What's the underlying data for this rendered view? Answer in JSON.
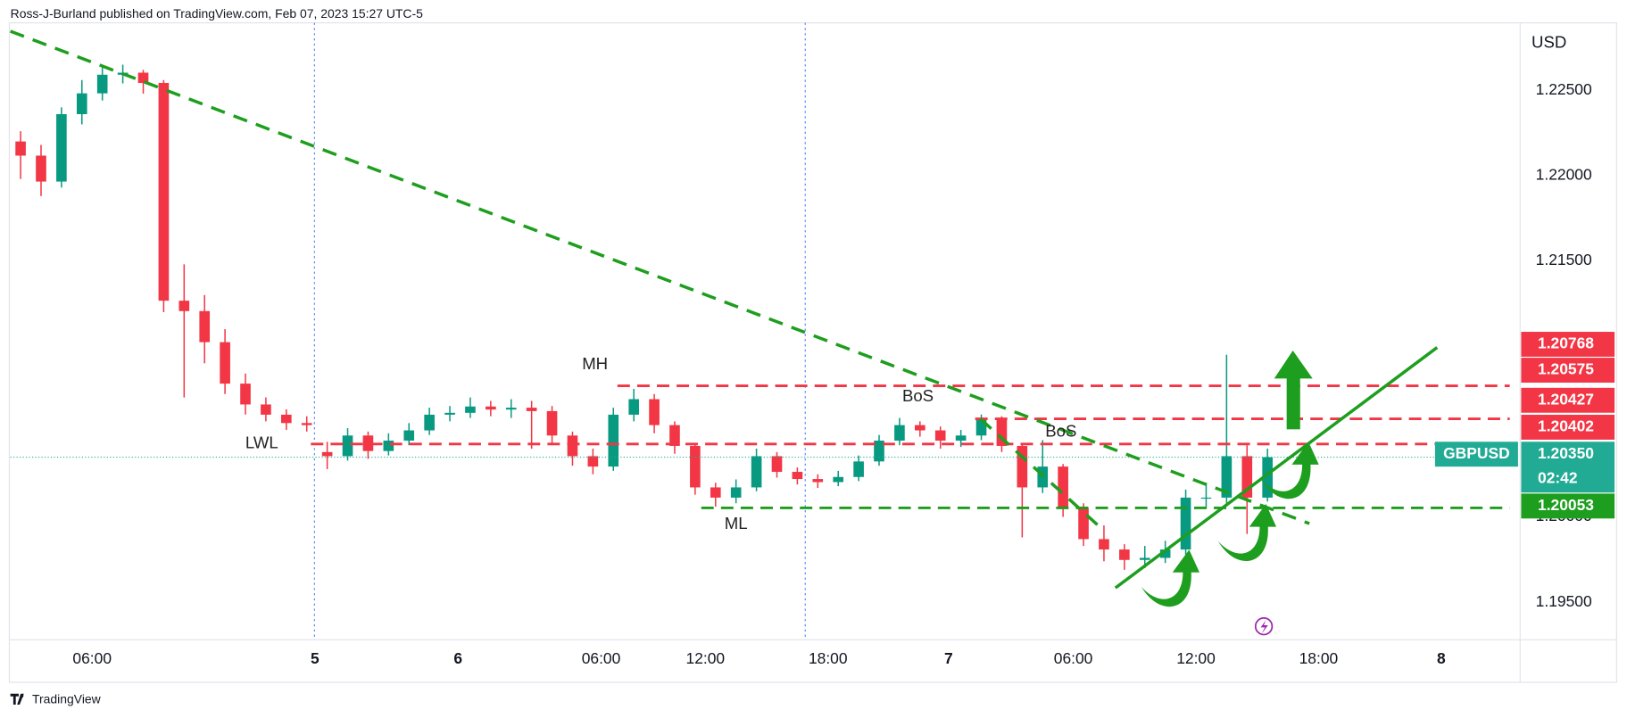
{
  "header": "Ross-J-Burland published on TradingView.com, Feb 07, 2023 15:27 UTC-5",
  "footer": "TradingView",
  "chart_data": {
    "type": "candlestick",
    "symbol": "GBPUSD",
    "y_axis_label": "USD",
    "up_color": "#089981",
    "down_color": "#f23645",
    "open": [
      1.222,
      1.22117,
      1.21965,
      1.2236,
      1.22482,
      1.22591,
      1.22603,
      1.22543,
      1.21267,
      1.21206,
      1.21024,
      1.20781,
      1.20659,
      1.20599,
      1.2055,
      1.2038,
      1.20356,
      1.20477,
      1.20386,
      1.20447,
      1.20507,
      1.20599,
      1.2061,
      1.20647,
      1.20629,
      1.2064,
      1.2062,
      1.20477,
      1.20356,
      1.20295,
      1.20599,
      1.2069,
      1.20538,
      1.20416,
      1.20173,
      1.20113,
      1.20173,
      1.20356,
      1.20264,
      1.20222,
      1.20204,
      1.20234,
      1.20325,
      1.20447,
      1.20538,
      1.20507,
      1.20447,
      1.20477,
      1.20568,
      1.20416,
      1.20173,
      1.20295,
      1.20052,
      1.1987,
      1.19809,
      1.19748,
      1.1976,
      1.19809,
      1.20113,
      1.20113,
      1.20356,
      1.20113
    ],
    "high": [
      1.2226,
      1.2218,
      1.224,
      1.2256,
      1.2264,
      1.2265,
      1.2262,
      1.2256,
      1.2148,
      1.213,
      1.211,
      1.2084,
      1.207,
      1.2063,
      1.2059,
      1.2044,
      1.2052,
      1.205,
      1.2049,
      1.2055,
      1.2064,
      1.2065,
      1.207,
      1.2068,
      1.2069,
      1.2068,
      1.2065,
      1.205,
      1.204,
      1.2064,
      1.2075,
      1.2072,
      1.2056,
      1.2043,
      1.202,
      1.2022,
      1.204,
      1.2038,
      1.2029,
      1.2025,
      1.2027,
      1.2036,
      1.2048,
      1.2058,
      1.2056,
      1.2053,
      1.2051,
      1.206,
      1.2059,
      1.2043,
      1.2045,
      1.2031,
      1.2008,
      1.1995,
      1.1984,
      1.1983,
      1.1986,
      1.2016,
      1.202,
      1.2095,
      1.2042,
      1.204
    ],
    "low": [
      1.2198,
      1.2188,
      1.2193,
      1.223,
      1.2244,
      1.2254,
      1.2248,
      1.212,
      1.207,
      1.209,
      1.2072,
      1.206,
      1.2056,
      1.2051,
      1.205,
      1.2028,
      1.2033,
      1.2034,
      1.2036,
      1.2042,
      1.2048,
      1.2056,
      1.2058,
      1.2059,
      1.2058,
      1.204,
      1.2042,
      1.203,
      1.2025,
      1.2027,
      1.2056,
      1.2049,
      1.2037,
      1.2013,
      1.2006,
      1.2008,
      1.2015,
      1.2023,
      1.2019,
      1.2017,
      1.2018,
      1.2021,
      1.203,
      1.2042,
      1.2047,
      1.204,
      1.2041,
      1.2045,
      1.2038,
      1.1988,
      1.2014,
      1.2,
      1.1983,
      1.1974,
      1.1969,
      1.197,
      1.1973,
      1.1978,
      1.2005,
      1.2008,
      1.199,
      1.2009
    ],
    "close": [
      1.22117,
      1.21965,
      1.2236,
      1.22482,
      1.22591,
      1.22603,
      1.22543,
      1.21267,
      1.21206,
      1.21024,
      1.20781,
      1.20659,
      1.20599,
      1.2055,
      1.20538,
      1.20356,
      1.20477,
      1.20386,
      1.20447,
      1.20507,
      1.20599,
      1.2061,
      1.20647,
      1.20629,
      1.2064,
      1.2062,
      1.20477,
      1.20356,
      1.20295,
      1.20599,
      1.2069,
      1.20538,
      1.20416,
      1.20173,
      1.20113,
      1.20173,
      1.20356,
      1.20264,
      1.20222,
      1.20204,
      1.20234,
      1.20325,
      1.20447,
      1.20538,
      1.20507,
      1.20447,
      1.20477,
      1.20568,
      1.20416,
      1.20173,
      1.20295,
      1.20052,
      1.1987,
      1.19809,
      1.19748,
      1.1976,
      1.19809,
      1.20113,
      1.20113,
      1.20356,
      1.20113,
      1.2035
    ],
    "xlim": [
      0,
      73.86
    ],
    "xticks": [
      {
        "value": 4,
        "label": "06:00"
      },
      {
        "value": 14.9,
        "label": "5"
      },
      {
        "value": 21.9,
        "label": "6"
      },
      {
        "value": 28.9,
        "label": "06:00"
      },
      {
        "value": 34,
        "label": "12:00"
      },
      {
        "value": 40,
        "label": "18:00"
      },
      {
        "value": 45.9,
        "label": "7"
      },
      {
        "value": 52,
        "label": "06:00"
      },
      {
        "value": 58,
        "label": "12:00"
      },
      {
        "value": 64,
        "label": "18:00"
      },
      {
        "value": 70,
        "label": "8"
      }
    ],
    "ylim": [
      1.19292,
      1.22877
    ],
    "yticks": [
      {
        "value": 1.195,
        "label": "1.19500"
      },
      {
        "value": 1.2,
        "label": "1.20000"
      },
      {
        "value": 1.215,
        "label": "1.21500"
      },
      {
        "value": 1.22,
        "label": "1.22000"
      },
      {
        "value": 1.225,
        "label": "1.22500"
      }
    ],
    "levels": [
      {
        "value": 1.20768,
        "start": 29.7,
        "color": "#f23645"
      },
      {
        "value": 1.20575,
        "start": 47.2,
        "color": "#f23645"
      },
      {
        "value": 1.20427,
        "start": 14.7,
        "color": "#f23645"
      },
      {
        "value": 1.20053,
        "start": 33.8,
        "color": "#1e9e1e"
      }
    ],
    "trendlines": [
      {
        "x": [
          0,
          63.55
        ],
        "y": [
          1.22846,
          1.19961
        ],
        "dashed": true,
        "color": "#1e9e1e"
      },
      {
        "x": [
          47.46,
          53.4
        ],
        "y": [
          1.20574,
          1.1993
        ],
        "dashed": true,
        "color": "#1e9e1e"
      },
      {
        "x": [
          54.06,
          69.8
        ],
        "y": [
          1.19584,
          1.20993
        ],
        "dashed": false,
        "color": "#1e9e1e"
      }
    ],
    "annotations": [
      {
        "text": "MH",
        "x": 28.6,
        "y": 1.2089
      },
      {
        "text": "LWL",
        "x": 12.3,
        "y": 1.20428
      },
      {
        "text": "ML",
        "x": 35.5,
        "y": 1.19955
      },
      {
        "text": "BoS",
        "x": 44.4,
        "y": 1.20702
      },
      {
        "text": "BoS",
        "x": 51.4,
        "y": 1.20495
      }
    ],
    "price_labels": [
      {
        "value": 1.20768,
        "label": "1.20768",
        "color": "#f23645"
      },
      {
        "value": 1.20575,
        "label": "1.20575",
        "color": "#f23645"
      },
      {
        "value": 1.20427,
        "label": "1.20427",
        "color": "#f23645"
      },
      {
        "value": 1.20402,
        "label": "1.20402",
        "color": "#f23645"
      },
      {
        "value": 1.2035,
        "label": "1.20350",
        "color": "#22ab94",
        "countdown": "02:42"
      },
      {
        "value": 1.20053,
        "label": "1.20053",
        "color": "#1e9e1e"
      }
    ]
  }
}
